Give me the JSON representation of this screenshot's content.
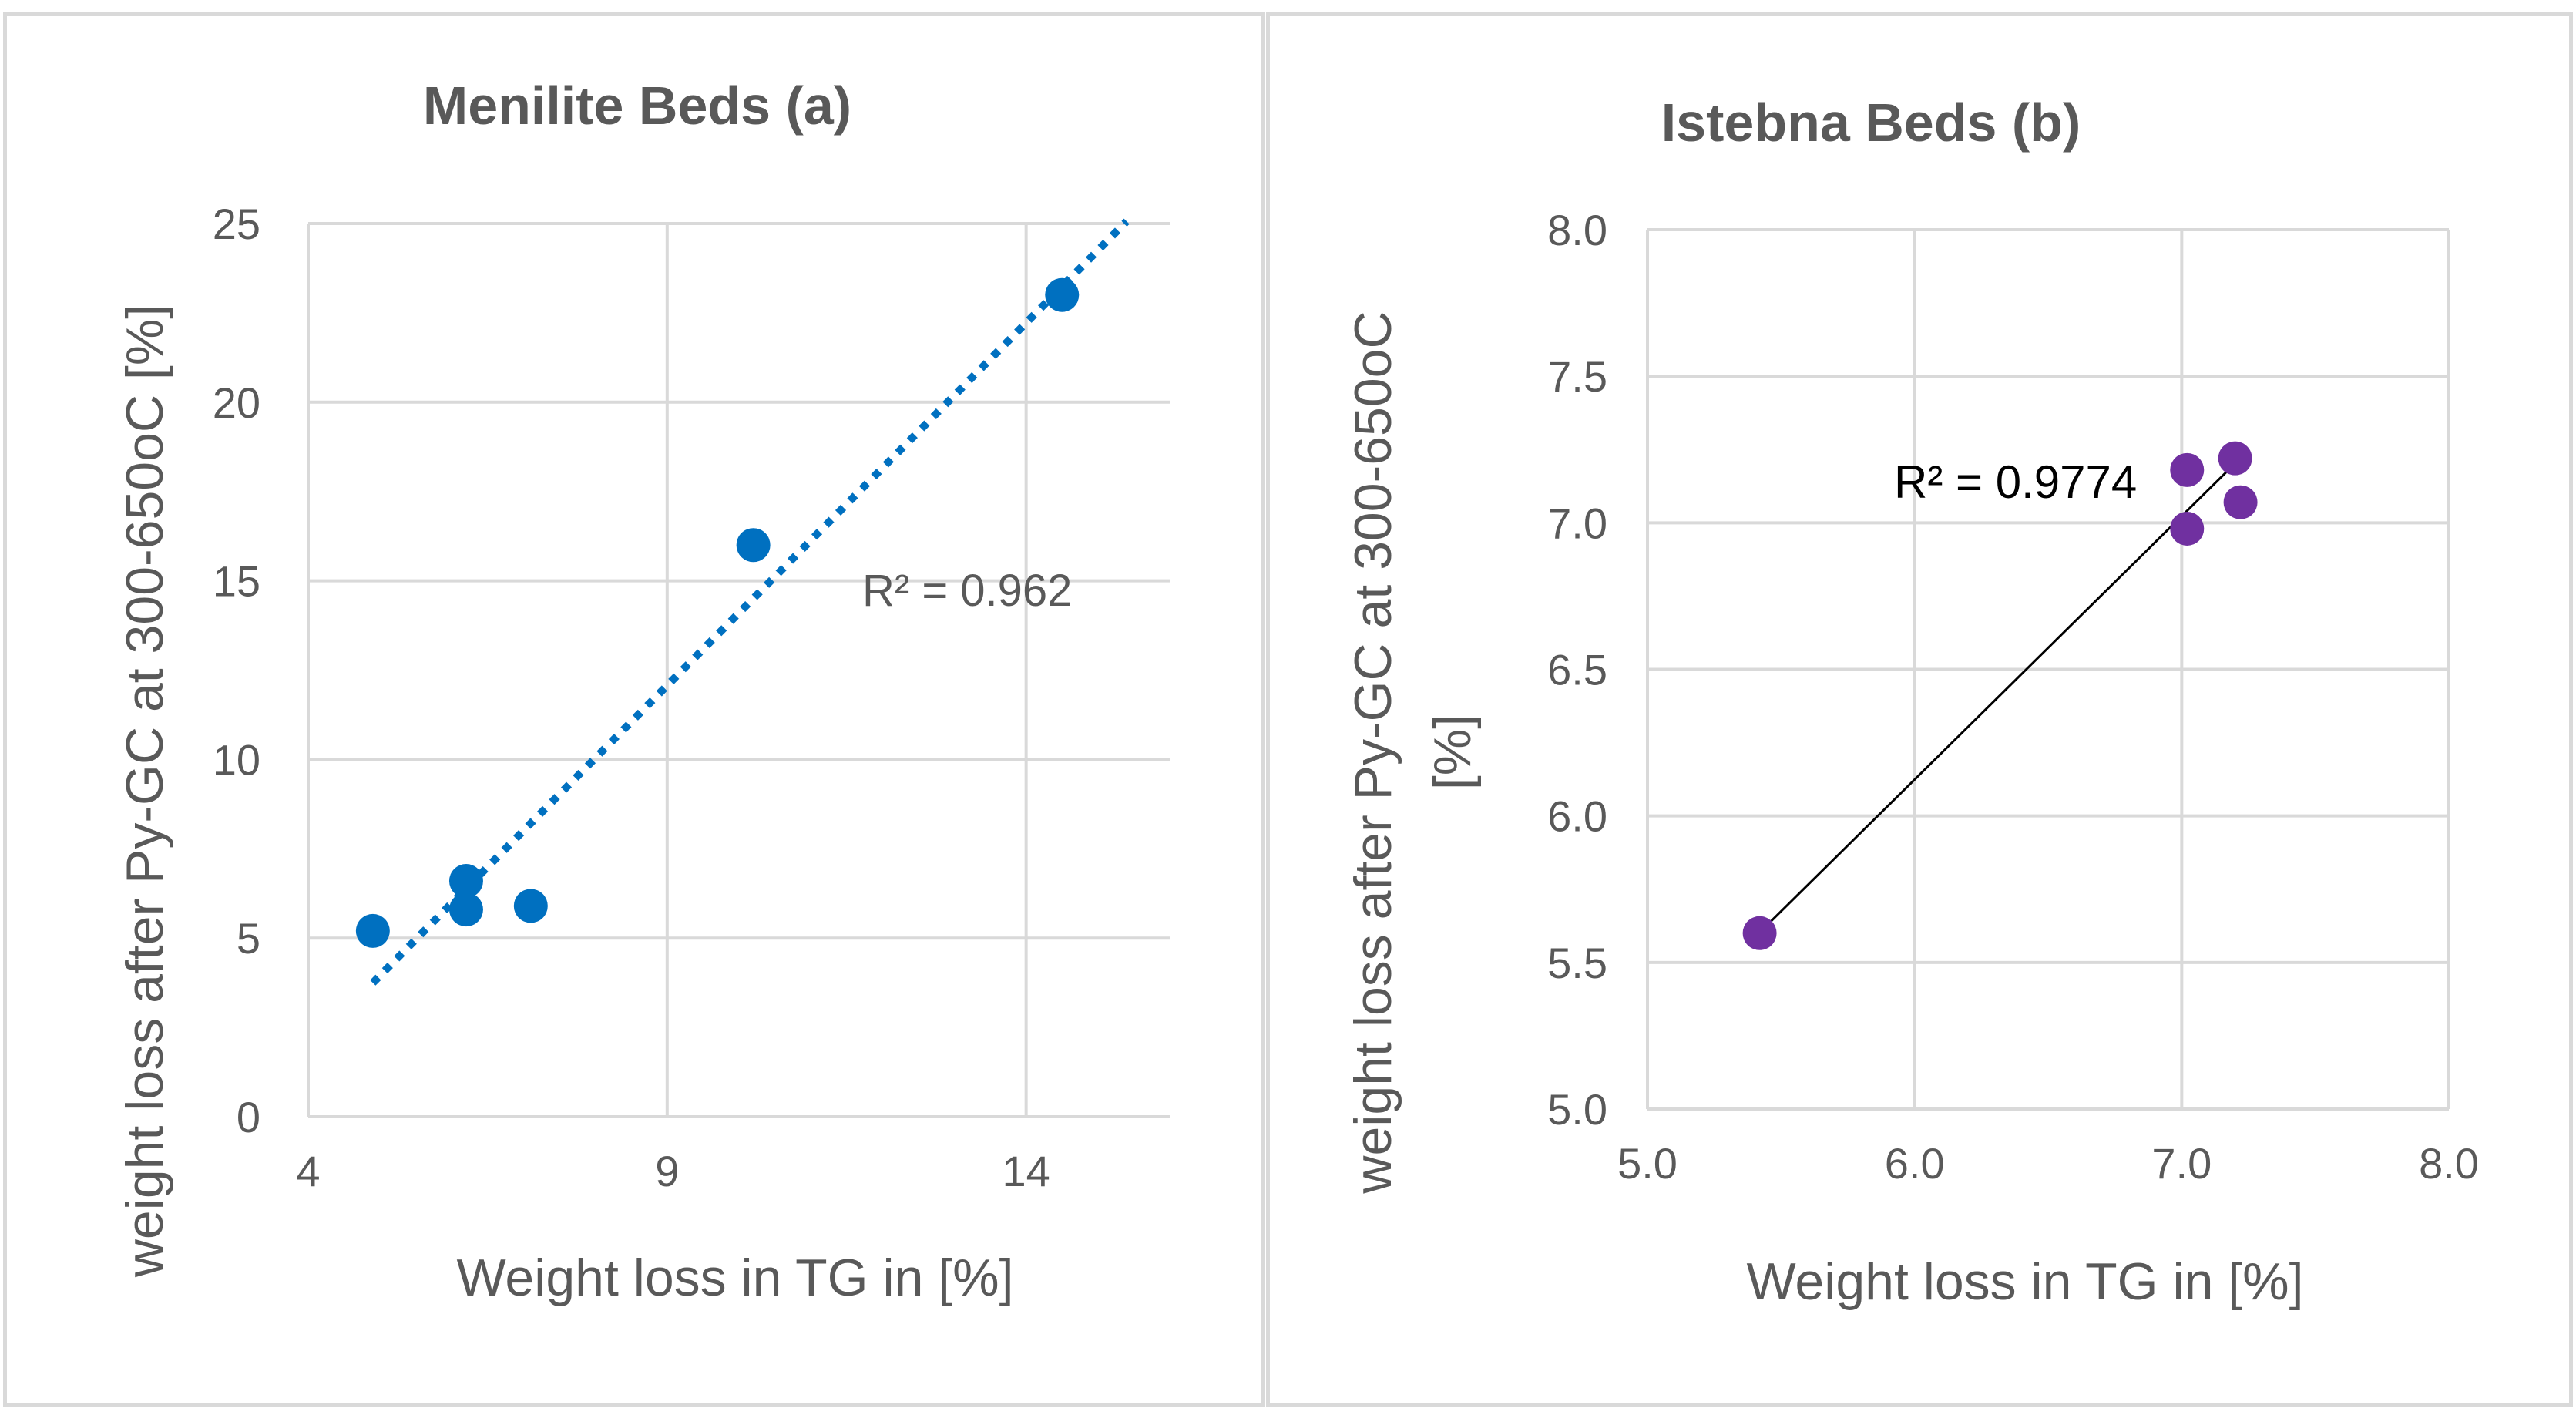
{
  "chart_data": [
    {
      "type": "scatter",
      "title": "Menilite Beds (a)",
      "xlabel": "Weight loss in TG in [%]",
      "ylabel": "weight loss after Py-GC at 300-650oC [%]",
      "xlim": [
        4,
        16
      ],
      "ylim": [
        0,
        25
      ],
      "xticks": [
        4,
        9,
        14
      ],
      "yticks": [
        0,
        5,
        10,
        15,
        20,
        25
      ],
      "xtick_labels": [
        "4",
        "9",
        "14"
      ],
      "ytick_labels": [
        "0",
        "5",
        "10",
        "15",
        "20",
        "25"
      ],
      "grid": true,
      "marker_color": "#0070C0",
      "trendline": {
        "style": "dotted",
        "color": "#0070C0",
        "x_range": [
          4.9,
          15.4
        ],
        "slope": 2.03,
        "intercept": -6.2,
        "label": "R² = 0.962"
      },
      "series": [
        {
          "name": "Menilite Beds",
          "x": [
            4.9,
            6.2,
            6.2,
            7.1,
            10.2,
            14.5
          ],
          "y": [
            5.2,
            6.6,
            5.8,
            5.9,
            16.0,
            23.0
          ]
        }
      ]
    },
    {
      "type": "scatter",
      "title": "Istebna Beds (b)",
      "xlabel": "Weight loss in TG in [%]",
      "ylabel": "weight loss after Py-GC at 300-650oC [%]",
      "xlim": [
        5.0,
        8.0
      ],
      "ylim": [
        5.0,
        8.0
      ],
      "xticks": [
        5.0,
        6.0,
        7.0,
        8.0
      ],
      "yticks": [
        5.0,
        5.5,
        6.0,
        6.5,
        7.0,
        7.5,
        8.0
      ],
      "xtick_labels": [
        "5.0",
        "6.0",
        "7.0",
        "8.0"
      ],
      "ytick_labels": [
        "5.0",
        "5.5",
        "6.0",
        "6.5",
        "7.0",
        "7.5",
        "8.0"
      ],
      "grid": true,
      "marker_color": "#7030A0",
      "trendline": {
        "style": "solid",
        "color": "#000000",
        "x_range": [
          5.42,
          7.2
        ],
        "slope": 0.899,
        "intercept": 0.73,
        "label": "R² = 0.9774"
      },
      "series": [
        {
          "name": "Istebna Beds",
          "x": [
            5.42,
            7.02,
            7.02,
            7.2,
            7.22
          ],
          "y": [
            5.6,
            6.98,
            7.18,
            7.22,
            7.07
          ]
        }
      ]
    }
  ]
}
